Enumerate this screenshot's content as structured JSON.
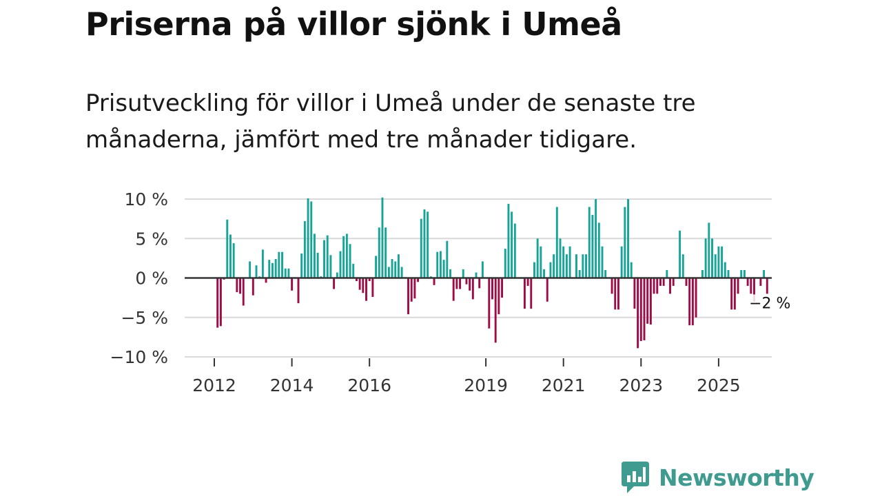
{
  "title": "Priserna på villor sjönk i Umeå",
  "subtitle": "Prisutveckling för villor i Umeå under de senaste tre månaderna, jämfört med tre månader tidigare.",
  "brand": {
    "name": "Newsworthy"
  },
  "colors": {
    "positive": "#15a497",
    "negative": "#9e0b45",
    "grid": "#d9d9d9",
    "zero": "#333333",
    "brand": "#3f9b8f"
  },
  "chart_data": {
    "type": "bar",
    "title": "",
    "xlabel": "",
    "ylabel": "",
    "ylim": [
      -10,
      10
    ],
    "y_ticks": [
      10,
      5,
      0,
      -5,
      -10
    ],
    "y_tick_labels": [
      "10 %",
      "5 %",
      "0 %",
      "−5 %",
      "−10 %"
    ],
    "x_ticks": [
      2012,
      2014,
      2016,
      2019,
      2021,
      2023,
      2025
    ],
    "x_tick_labels": [
      "2012",
      "2014",
      "2016",
      "2019",
      "2021",
      "2023",
      "2025"
    ],
    "start_year": 2012,
    "start_month": 1,
    "annotation": {
      "text": "−2 %",
      "value": -2
    },
    "values": [
      0,
      -6.3,
      -6.1,
      -0.2,
      7.4,
      5.5,
      4.4,
      -1.8,
      -2,
      -3.5,
      0,
      2.1,
      -2.2,
      1.6,
      0.2,
      3.6,
      -0.6,
      2.3,
      1.9,
      2.4,
      3.3,
      3.3,
      1.2,
      1.2,
      -1.6,
      -0.1,
      -3.2,
      3.1,
      7.2,
      10.1,
      9.7,
      5.6,
      3.2,
      0.2,
      4.8,
      5.4,
      2.9,
      -1.4,
      0.7,
      3.4,
      5.3,
      5.6,
      4.3,
      1.8,
      -0.4,
      -1.5,
      -1.9,
      -2.9,
      -0.4,
      -2.4,
      2.8,
      6.4,
      10.2,
      6.4,
      1.4,
      2.4,
      2.1,
      3.0,
      1.4,
      0.1,
      -4.6,
      -3.0,
      -2.6,
      -0.5,
      7.5,
      8.7,
      8.4,
      0.2,
      -0.9,
      3.3,
      3.4,
      2.3,
      4.7,
      1.1,
      -2.9,
      -1.4,
      -1.4,
      1.1,
      -0.8,
      -1.6,
      -2.7,
      0.7,
      -1.3,
      2.1,
      0,
      -6.4,
      -2.7,
      -8.2,
      -4.6,
      -2.5,
      3.7,
      9.4,
      8.4,
      6.9,
      0,
      -0.1,
      -3.9,
      -1.0,
      -3.9,
      2.0,
      5.0,
      4.0,
      1.1,
      -3.0,
      2.0,
      3.0,
      9.0,
      5.0,
      4.0,
      3.0,
      4.0,
      0,
      3.0,
      1.0,
      3.0,
      3.0,
      9.0,
      8.0,
      10.0,
      7.0,
      4.0,
      1.0,
      0,
      -2.0,
      -4.0,
      -4.0,
      4.0,
      9.0,
      10.0,
      2.0,
      -3.9,
      -8.9,
      -8.0,
      -7.9,
      -5.8,
      -5.9,
      -2.0,
      -2.0,
      -1.0,
      -1.0,
      1.0,
      -2.0,
      -1.0,
      0,
      6.0,
      3.0,
      -1.0,
      -6.0,
      -6.0,
      -5.0,
      0,
      1.0,
      5.0,
      7.0,
      5.0,
      3.0,
      4.0,
      4.0,
      2.0,
      1.0,
      -4.0,
      -4.0,
      -2.0,
      1.0,
      1.0,
      -1.0,
      -2.0,
      -3.0,
      0,
      -1.0,
      1.0,
      -2.0
    ]
  }
}
